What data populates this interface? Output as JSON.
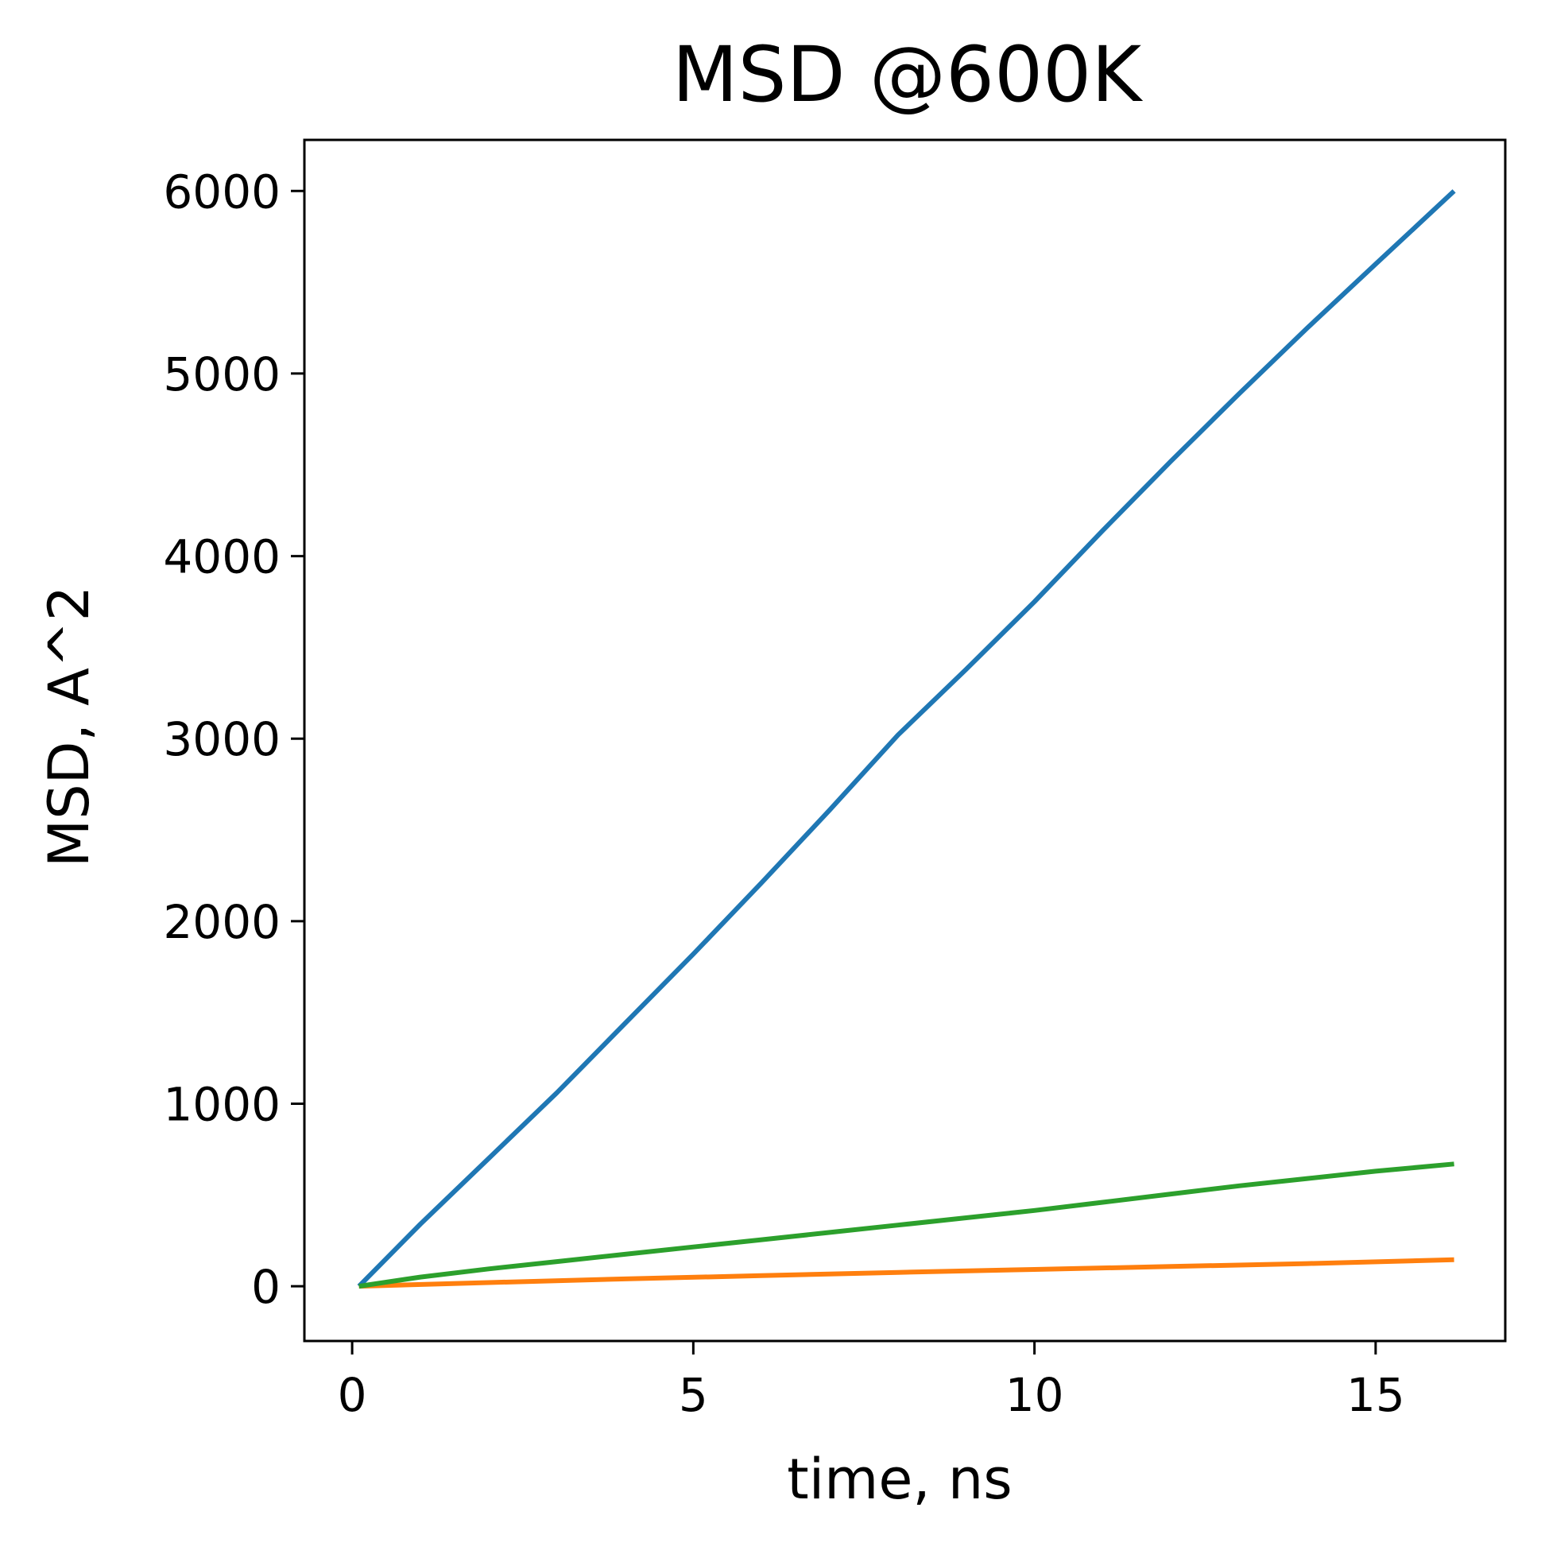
{
  "chart_data": {
    "type": "line",
    "title": "MSD @600K",
    "xlabel": "time, ns",
    "ylabel": "MSD, A^2",
    "xlim": [
      -0.7,
      16.9
    ],
    "ylim": [
      -300,
      6280
    ],
    "xticks": [
      0,
      5,
      10,
      15
    ],
    "yticks": [
      0,
      1000,
      2000,
      3000,
      4000,
      5000,
      6000
    ],
    "grid": false,
    "series": [
      {
        "color": "#1f77b4",
        "x": [
          0.1,
          1.0,
          2.0,
          3.0,
          4.0,
          5.0,
          6.0,
          7.0,
          8.0,
          9.0,
          10.0,
          11.0,
          12.0,
          13.0,
          14.0,
          15.0,
          16.15
        ],
        "y": [
          0,
          340,
          700,
          1060,
          1440,
          1820,
          2210,
          2610,
          3020,
          3380,
          3750,
          4140,
          4520,
          4890,
          5250,
          5600,
          6000
        ]
      },
      {
        "color": "#ff7f0e",
        "x": [
          0.1,
          2.0,
          4.0,
          6.0,
          8.0,
          10.0,
          12.0,
          14.0,
          16.15
        ],
        "y": [
          0,
          20,
          40,
          58,
          76,
          92,
          108,
          124,
          145
        ]
      },
      {
        "color": "#2ca02c",
        "x": [
          0.1,
          1.0,
          2.0,
          3.0,
          4.0,
          5.0,
          6.0,
          7.0,
          8.0,
          9.0,
          10.0,
          11.0,
          12.0,
          13.0,
          14.0,
          15.0,
          16.15
        ],
        "y": [
          0,
          50,
          95,
          135,
          175,
          215,
          255,
          295,
          335,
          375,
          415,
          460,
          505,
          550,
          590,
          630,
          670
        ]
      }
    ]
  }
}
